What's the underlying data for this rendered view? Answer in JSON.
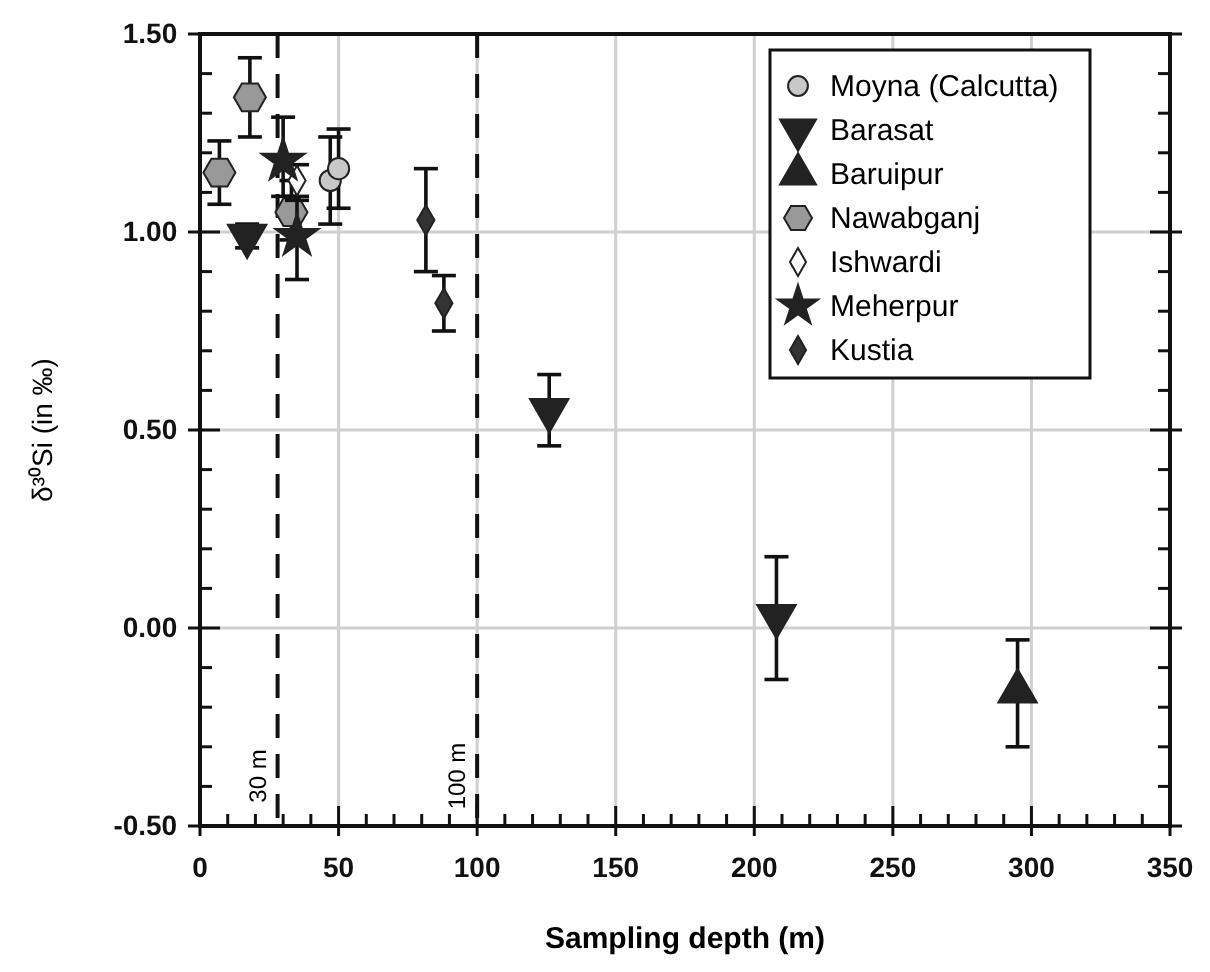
{
  "chart_data": {
    "type": "scatter",
    "xlabel": "Sampling depth (m)",
    "ylabel": "δ³⁰Si (in ‰)",
    "xlim": [
      0,
      350
    ],
    "ylim": [
      -0.5,
      1.5
    ],
    "xticks": [
      0,
      {
        "value": 10,
        "label": null
      },
      {
        "value": 20,
        "label": null
      },
      {
        "value": 30,
        "label": null
      },
      {
        "value": 40,
        "label": null
      },
      50,
      {
        "value": 60,
        "label": null
      },
      {
        "value": 70,
        "label": null
      },
      {
        "value": 80,
        "label": null
      },
      {
        "value": 90,
        "label": null
      },
      100,
      {
        "value": 110,
        "label": null
      },
      {
        "value": 120,
        "label": null
      },
      {
        "value": 130,
        "label": null
      },
      {
        "value": 140,
        "label": null
      },
      150,
      {
        "value": 160,
        "label": null
      },
      {
        "value": 170,
        "label": null
      },
      {
        "value": 180,
        "label": null
      },
      {
        "value": 190,
        "label": null
      },
      200,
      {
        "value": 210,
        "label": null
      },
      {
        "value": 220,
        "label": null
      },
      {
        "value": 230,
        "label": null
      },
      {
        "value": 240,
        "label": null
      },
      250,
      {
        "value": 260,
        "label": null
      },
      {
        "value": 270,
        "label": null
      },
      {
        "value": 280,
        "label": null
      },
      {
        "value": 290,
        "label": null
      },
      300,
      {
        "value": 310,
        "label": null
      },
      {
        "value": 320,
        "label": null
      },
      {
        "value": 330,
        "label": null
      },
      {
        "value": 340,
        "label": null
      },
      350
    ],
    "yticks": [
      {
        "value": -0.5,
        "label": "-0.50"
      },
      {
        "value": -0.4,
        "label": null
      },
      {
        "value": -0.3,
        "label": null
      },
      {
        "value": -0.2,
        "label": null
      },
      {
        "value": -0.1,
        "label": null
      },
      {
        "value": 0,
        "label": "0.00"
      },
      {
        "value": 0.1,
        "label": null
      },
      {
        "value": 0.2,
        "label": null
      },
      {
        "value": 0.3,
        "label": null
      },
      {
        "value": 0.4,
        "label": null
      },
      {
        "value": 0.5,
        "label": "0.50"
      },
      {
        "value": 0.6,
        "label": null
      },
      {
        "value": 0.7,
        "label": null
      },
      {
        "value": 0.8,
        "label": null
      },
      {
        "value": 0.9,
        "label": null
      },
      {
        "value": 1,
        "label": "1.00"
      },
      {
        "value": 1.1,
        "label": null
      },
      {
        "value": 1.2,
        "label": null
      },
      {
        "value": 1.3,
        "label": null
      },
      {
        "value": 1.4,
        "label": null
      },
      {
        "value": 1.5,
        "label": "1.50"
      }
    ],
    "grid": true,
    "legend": "top right",
    "ref_lines": [
      {
        "axis": "x",
        "value": 28,
        "label": "30 m",
        "line_style": "dashed"
      },
      {
        "axis": "x",
        "value": 100,
        "label": "100 m",
        "line_style": "dashed"
      }
    ],
    "series": [
      {
        "name": "Moyna (Calcutta)",
        "color": "#c8c8c8",
        "marker": "circle",
        "x": [
          47,
          50
        ],
        "values": [
          1.13,
          1.16
        ],
        "errors": [
          [
            1.02,
            1.24
          ],
          [
            1.06,
            1.26
          ]
        ]
      },
      {
        "name": "Barasat",
        "color": "#222222",
        "marker": "triangle-down",
        "x": [
          17,
          126,
          208
        ],
        "values": [
          0.99,
          0.55,
          0.03
        ],
        "errors": [
          [
            0.96,
            1.02
          ],
          [
            0.46,
            0.64
          ],
          [
            -0.13,
            0.18
          ]
        ]
      },
      {
        "name": "Baruipur",
        "color": "#222222",
        "marker": "triangle",
        "x": [
          295
        ],
        "values": [
          -0.16
        ],
        "errors": [
          [
            -0.3,
            -0.03
          ]
        ]
      },
      {
        "name": "Nawabganj",
        "color": "#999999",
        "x": [
          7,
          18,
          33
        ],
        "values": [
          1.15,
          1.34,
          1.05
        ],
        "errors": [
          [
            1.07,
            1.23
          ],
          [
            1.24,
            1.44
          ],
          [
            0.98,
            1.13
          ]
        ]
      },
      {
        "name": "Ishwardi",
        "color": "#ffffff",
        "marker": "diamond",
        "x": [
          35
        ],
        "values": [
          1.13
        ],
        "errors": [
          [
            1.09,
            1.17
          ]
        ]
      },
      {
        "name": "Meherpur",
        "color": "#222222",
        "marker": "star",
        "x": [
          30,
          35
        ],
        "values": [
          1.18,
          0.99
        ],
        "errors": [
          [
            1.09,
            1.29
          ],
          [
            0.88,
            1.08
          ]
        ]
      },
      {
        "name": "Kustia",
        "color": "#333333",
        "marker": "diamond",
        "x": [
          81.5,
          88
        ],
        "values": [
          1.03,
          0.82
        ],
        "errors": [
          [
            0.9,
            1.16
          ],
          [
            0.75,
            0.89
          ]
        ]
      }
    ]
  }
}
